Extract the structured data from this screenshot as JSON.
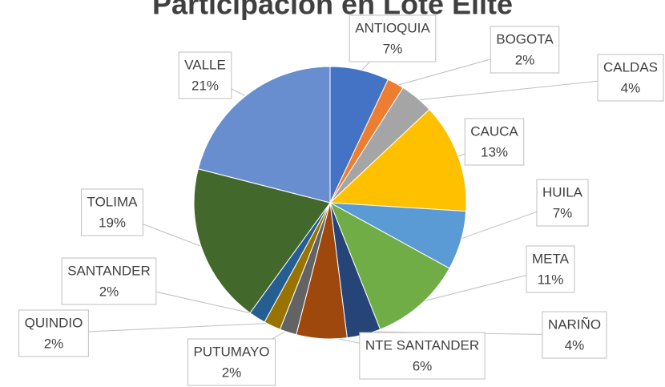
{
  "chart_data": {
    "type": "pie",
    "title": "Participación en Lote Élite",
    "categories": [
      "ANTIOQUIA",
      "BOGOTA",
      "CALDAS",
      "CAUCA",
      "HUILA",
      "META",
      "NARIÑO",
      "NTE SANTANDER",
      "PUTUMAYO",
      "QUINDIO",
      "SANTANDER",
      "TOLIMA",
      "VALLE"
    ],
    "values": [
      7,
      2,
      4,
      13,
      7,
      11,
      4,
      6,
      2,
      2,
      2,
      19,
      21
    ],
    "value_labels": [
      "7%",
      "2%",
      "4%",
      "13%",
      "7%",
      "11%",
      "4%",
      "6%",
      "2%",
      "2%",
      "2%",
      "19%",
      "21%"
    ],
    "colors": [
      "#4472c4",
      "#ed7d31",
      "#a5a5a5",
      "#ffc000",
      "#5b9bd5",
      "#70ad47",
      "#264478",
      "#9e480e",
      "#636363",
      "#997300",
      "#255e91",
      "#43682b",
      "#698ed0"
    ]
  }
}
